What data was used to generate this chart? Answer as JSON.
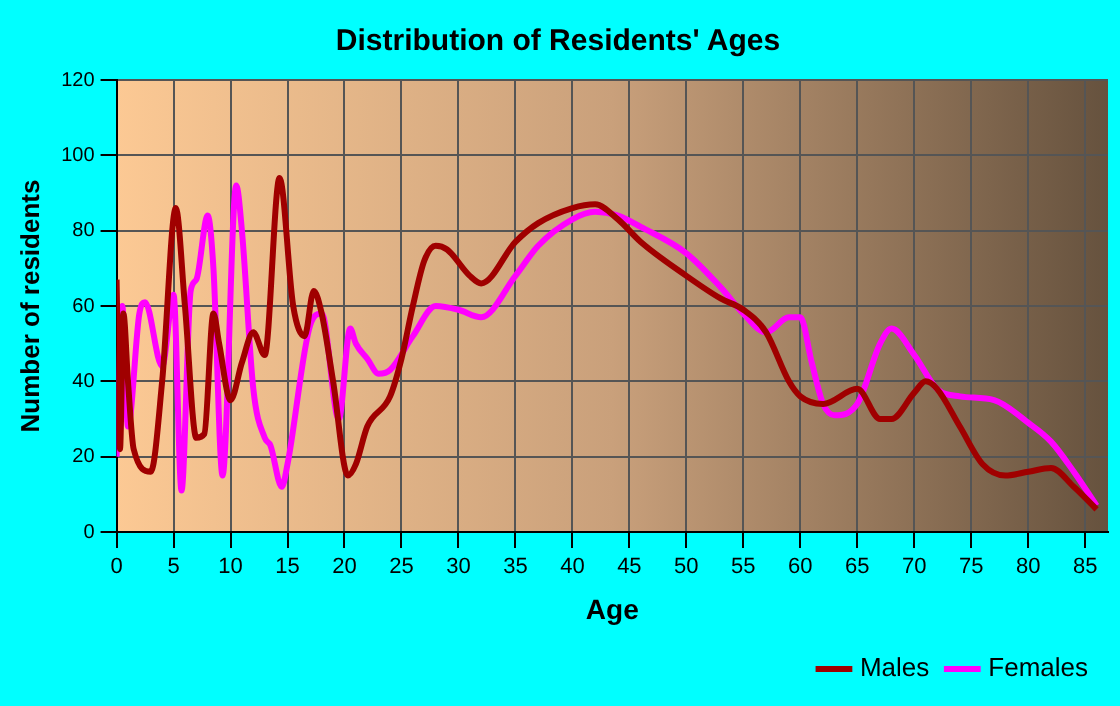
{
  "chart_data": {
    "type": "line",
    "title": "Distribution of Residents' Ages",
    "xlabel": "Age",
    "ylabel": "Number of residents",
    "xlim": [
      0,
      87
    ],
    "xticks": [
      0,
      5,
      10,
      15,
      20,
      25,
      30,
      35,
      40,
      45,
      50,
      55,
      60,
      65,
      70,
      75,
      80,
      85
    ],
    "ylim": [
      0,
      120
    ],
    "yticks": [
      0,
      20,
      40,
      60,
      80,
      100,
      120
    ],
    "grid": true,
    "legend": "bottom right",
    "marker": "none",
    "line_style": "solid",
    "series": [
      {
        "name": "Males",
        "color": "#a00000",
        "x": [
          0,
          0.3,
          0.6,
          1,
          1.5,
          3,
          4,
          5.2,
          6,
          7,
          7.7,
          8.5,
          9,
          10,
          11,
          12,
          13,
          14.3,
          15.5,
          16.5,
          17.3,
          18,
          19,
          20.3,
          21,
          22,
          24,
          25,
          26,
          27,
          28,
          29,
          31,
          32,
          35,
          37,
          40,
          42,
          44,
          46,
          50,
          53,
          55,
          57,
          59,
          60,
          62,
          65,
          67,
          68,
          70,
          71,
          72,
          74,
          76,
          78,
          80,
          82,
          84,
          86
        ],
        "values": [
          67,
          22,
          58,
          40,
          22,
          16,
          40,
          86,
          60,
          25,
          26,
          58,
          50,
          35,
          45,
          53,
          47,
          94,
          60,
          52,
          64,
          58,
          40,
          15,
          18,
          28,
          36,
          46,
          60,
          72,
          76,
          75,
          68,
          66,
          77,
          82,
          86,
          87,
          83,
          77,
          68,
          62,
          59,
          53,
          40,
          36,
          34,
          38,
          30,
          30,
          37,
          40,
          38,
          28,
          18,
          15,
          16,
          17,
          12,
          6
        ]
      },
      {
        "name": "Females",
        "color": "#ff00ff",
        "x": [
          0,
          0.5,
          1,
          2,
          2.5,
          4,
          5,
          5.7,
          6.5,
          7,
          8,
          8.5,
          9.3,
          10.5,
          11,
          12,
          13,
          13.5,
          14.5,
          15,
          17,
          18,
          19.5,
          20.5,
          21,
          22,
          23,
          24,
          26,
          28,
          30,
          32,
          35,
          37,
          40,
          42,
          44,
          46,
          50,
          53,
          55,
          57,
          59,
          60,
          61,
          62,
          63,
          65,
          67,
          68,
          70,
          72,
          74,
          77,
          80,
          82,
          84,
          86
        ],
        "values": [
          20,
          60,
          28,
          58,
          61,
          44,
          63,
          11,
          64,
          67,
          84,
          70,
          15,
          92,
          80,
          38,
          25,
          23,
          12,
          18,
          55,
          58,
          30,
          54,
          50,
          46,
          42,
          43,
          52,
          60,
          59,
          57,
          68,
          76,
          83,
          85,
          84,
          81,
          74,
          65,
          58,
          53,
          57,
          57,
          45,
          34,
          31,
          34,
          50,
          54,
          47,
          38,
          36,
          35,
          29,
          24,
          16,
          7
        ]
      }
    ]
  }
}
